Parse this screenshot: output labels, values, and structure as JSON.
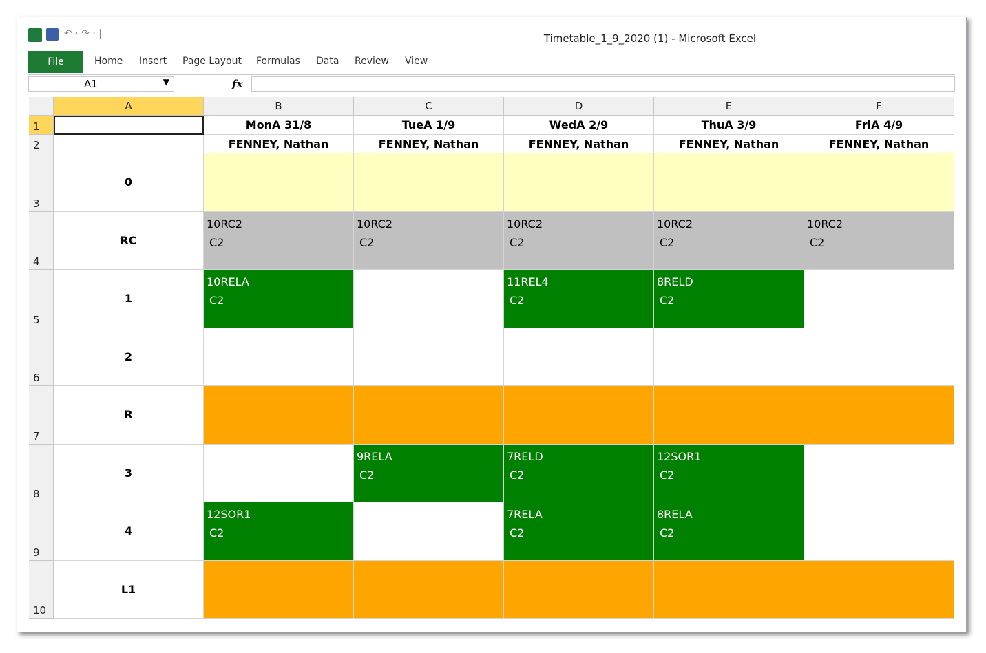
{
  "window": {
    "title": "Timetable_1_9_2020 (1) - Microsoft Excel"
  },
  "ribbon": {
    "tabs": [
      "File",
      "Home",
      "Insert",
      "Page Layout",
      "Formulas",
      "Data",
      "Review",
      "View"
    ]
  },
  "formula_bar": {
    "name_box": "A1",
    "function_icon": "fx"
  },
  "sheet": {
    "columns": [
      "A",
      "B",
      "C",
      "D",
      "E",
      "F"
    ],
    "row_numbers": [
      1,
      2,
      3,
      4,
      5,
      6,
      7,
      8,
      9,
      10
    ],
    "days": [
      "MonA 31/8",
      "TueA 1/9",
      "WedA 2/9",
      "ThuA 3/9",
      "FriA 4/9"
    ],
    "teachers": [
      "FENNEY, Nathan",
      "FENNEY, Nathan",
      "FENNEY, Nathan",
      "FENNEY, Nathan",
      "FENNEY, Nathan"
    ],
    "periods": [
      {
        "label": "0",
        "cells": [
          {
            "fill": "#ffffc0"
          },
          {
            "fill": "#ffffc0"
          },
          {
            "fill": "#ffffc0"
          },
          {
            "fill": "#ffffc0"
          },
          {
            "fill": "#ffffc0"
          }
        ]
      },
      {
        "label": "RC",
        "cells": [
          {
            "fill": "#c0c0c0",
            "text_color": "#000000",
            "class": "10RC2",
            "room": "C2"
          },
          {
            "fill": "#c0c0c0",
            "text_color": "#000000",
            "class": "10RC2",
            "room": "C2"
          },
          {
            "fill": "#c0c0c0",
            "text_color": "#000000",
            "class": "10RC2",
            "room": "C2"
          },
          {
            "fill": "#c0c0c0",
            "text_color": "#000000",
            "class": "10RC2",
            "room": "C2"
          },
          {
            "fill": "#c0c0c0",
            "text_color": "#000000",
            "class": "10RC2",
            "room": "C2"
          }
        ]
      },
      {
        "label": "1",
        "cells": [
          {
            "fill": "#008000",
            "text_color": "#ffffff",
            "class": "10RELA",
            "room": "C2"
          },
          {
            "fill": "#ffffff"
          },
          {
            "fill": "#008000",
            "text_color": "#ffffff",
            "class": "11REL4",
            "room": "C2"
          },
          {
            "fill": "#008000",
            "text_color": "#ffffff",
            "class": "8RELD",
            "room": "C2"
          },
          {
            "fill": "#ffffff"
          }
        ]
      },
      {
        "label": "2",
        "cells": [
          {
            "fill": "#ffffff"
          },
          {
            "fill": "#ffffff"
          },
          {
            "fill": "#ffffff"
          },
          {
            "fill": "#ffffff"
          },
          {
            "fill": "#ffffff"
          }
        ]
      },
      {
        "label": "R",
        "cells": [
          {
            "fill": "#ffa500"
          },
          {
            "fill": "#ffa500"
          },
          {
            "fill": "#ffa500"
          },
          {
            "fill": "#ffa500"
          },
          {
            "fill": "#ffa500"
          }
        ]
      },
      {
        "label": "3",
        "cells": [
          {
            "fill": "#ffffff"
          },
          {
            "fill": "#008000",
            "text_color": "#ffffff",
            "class": "9RELA",
            "room": "C2"
          },
          {
            "fill": "#008000",
            "text_color": "#ffffff",
            "class": "7RELD",
            "room": "C2"
          },
          {
            "fill": "#008000",
            "text_color": "#ffffff",
            "class": "12SOR1",
            "room": "C2"
          },
          {
            "fill": "#ffffff"
          }
        ]
      },
      {
        "label": "4",
        "cells": [
          {
            "fill": "#008000",
            "text_color": "#ffffff",
            "class": "12SOR1",
            "room": "C2"
          },
          {
            "fill": "#ffffff"
          },
          {
            "fill": "#008000",
            "text_color": "#ffffff",
            "class": "7RELA",
            "room": "C2"
          },
          {
            "fill": "#008000",
            "text_color": "#ffffff",
            "class": "8RELA",
            "room": "C2"
          },
          {
            "fill": "#ffffff"
          }
        ]
      },
      {
        "label": "L1",
        "cells": [
          {
            "fill": "#ffa500"
          },
          {
            "fill": "#ffa500"
          },
          {
            "fill": "#ffa500"
          },
          {
            "fill": "#ffa500"
          },
          {
            "fill": "#ffa500"
          }
        ]
      }
    ]
  }
}
